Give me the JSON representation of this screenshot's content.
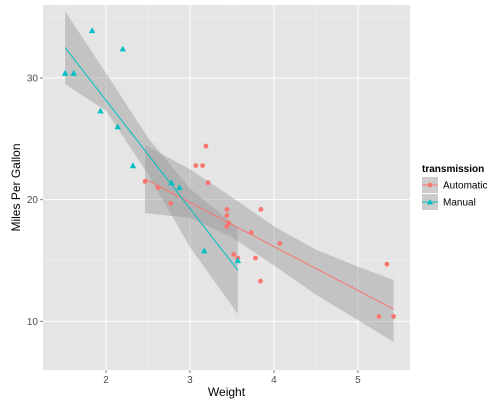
{
  "chart_data": {
    "type": "scatter",
    "title": "",
    "xlabel": "Weight",
    "ylabel": "Miles Per Gallon",
    "xlim": [
      1.25,
      5.62
    ],
    "ylim": [
      6.0,
      36.0
    ],
    "x_ticks": [
      2,
      3,
      4,
      5
    ],
    "y_ticks": [
      10,
      20,
      30
    ],
    "x_tick_labels": [
      "2",
      "3",
      "4",
      "5"
    ],
    "y_tick_labels": [
      "10",
      "20",
      "30"
    ],
    "grid": true,
    "background": "#e5e5e5",
    "grid_color": "#ffffff",
    "legend": {
      "title": "transmission",
      "placement": "right",
      "entries": [
        {
          "label": "Automatic",
          "color": "#f8766d",
          "shape": "circle"
        },
        {
          "label": "Manual",
          "color": "#00bfc4",
          "shape": "triangle"
        }
      ]
    },
    "series": [
      {
        "name": "Automatic",
        "color": "#f8766d",
        "marker": "circle",
        "x": [
          2.465,
          2.62,
          2.77,
          3.07,
          3.15,
          3.19,
          3.215,
          3.44,
          3.44,
          3.44,
          3.46,
          3.52,
          3.57,
          3.73,
          3.78,
          3.84,
          3.845,
          4.07,
          5.25,
          5.345,
          5.424
        ],
        "y": [
          21.5,
          21.0,
          19.7,
          22.8,
          22.8,
          24.4,
          21.4,
          18.7,
          19.2,
          17.8,
          18.1,
          15.5,
          15.2,
          17.3,
          15.2,
          13.3,
          19.2,
          16.4,
          10.4,
          14.7,
          10.4
        ],
        "fit": {
          "x": [
            2.465,
            5.424
          ],
          "y": [
            21.7,
            11.0
          ]
        },
        "band": {
          "x": [
            2.465,
            3.0,
            3.5,
            4.0,
            4.5,
            5.0,
            5.424
          ],
          "upper": [
            24.5,
            22.5,
            20.2,
            17.8,
            15.9,
            14.5,
            13.4
          ],
          "lower": [
            18.9,
            18.5,
            16.9,
            14.6,
            12.2,
            10.1,
            8.3
          ]
        }
      },
      {
        "name": "Manual",
        "color": "#00bfc4",
        "marker": "triangle",
        "x": [
          1.513,
          1.615,
          1.835,
          1.935,
          2.14,
          2.2,
          2.32,
          2.78,
          2.875,
          3.17,
          3.57
        ],
        "y": [
          30.4,
          30.4,
          33.9,
          27.3,
          26.0,
          32.4,
          22.8,
          21.4,
          21.0,
          15.8,
          15.0
        ],
        "fit": {
          "x": [
            1.513,
            3.57
          ],
          "y": [
            32.5,
            14.2
          ]
        },
        "band": {
          "x": [
            1.513,
            2.0,
            2.5,
            3.0,
            3.57
          ],
          "upper": [
            35.5,
            30.4,
            25.1,
            20.9,
            17.7
          ],
          "lower": [
            29.5,
            27.3,
            22.1,
            16.1,
            10.6
          ]
        }
      }
    ]
  }
}
